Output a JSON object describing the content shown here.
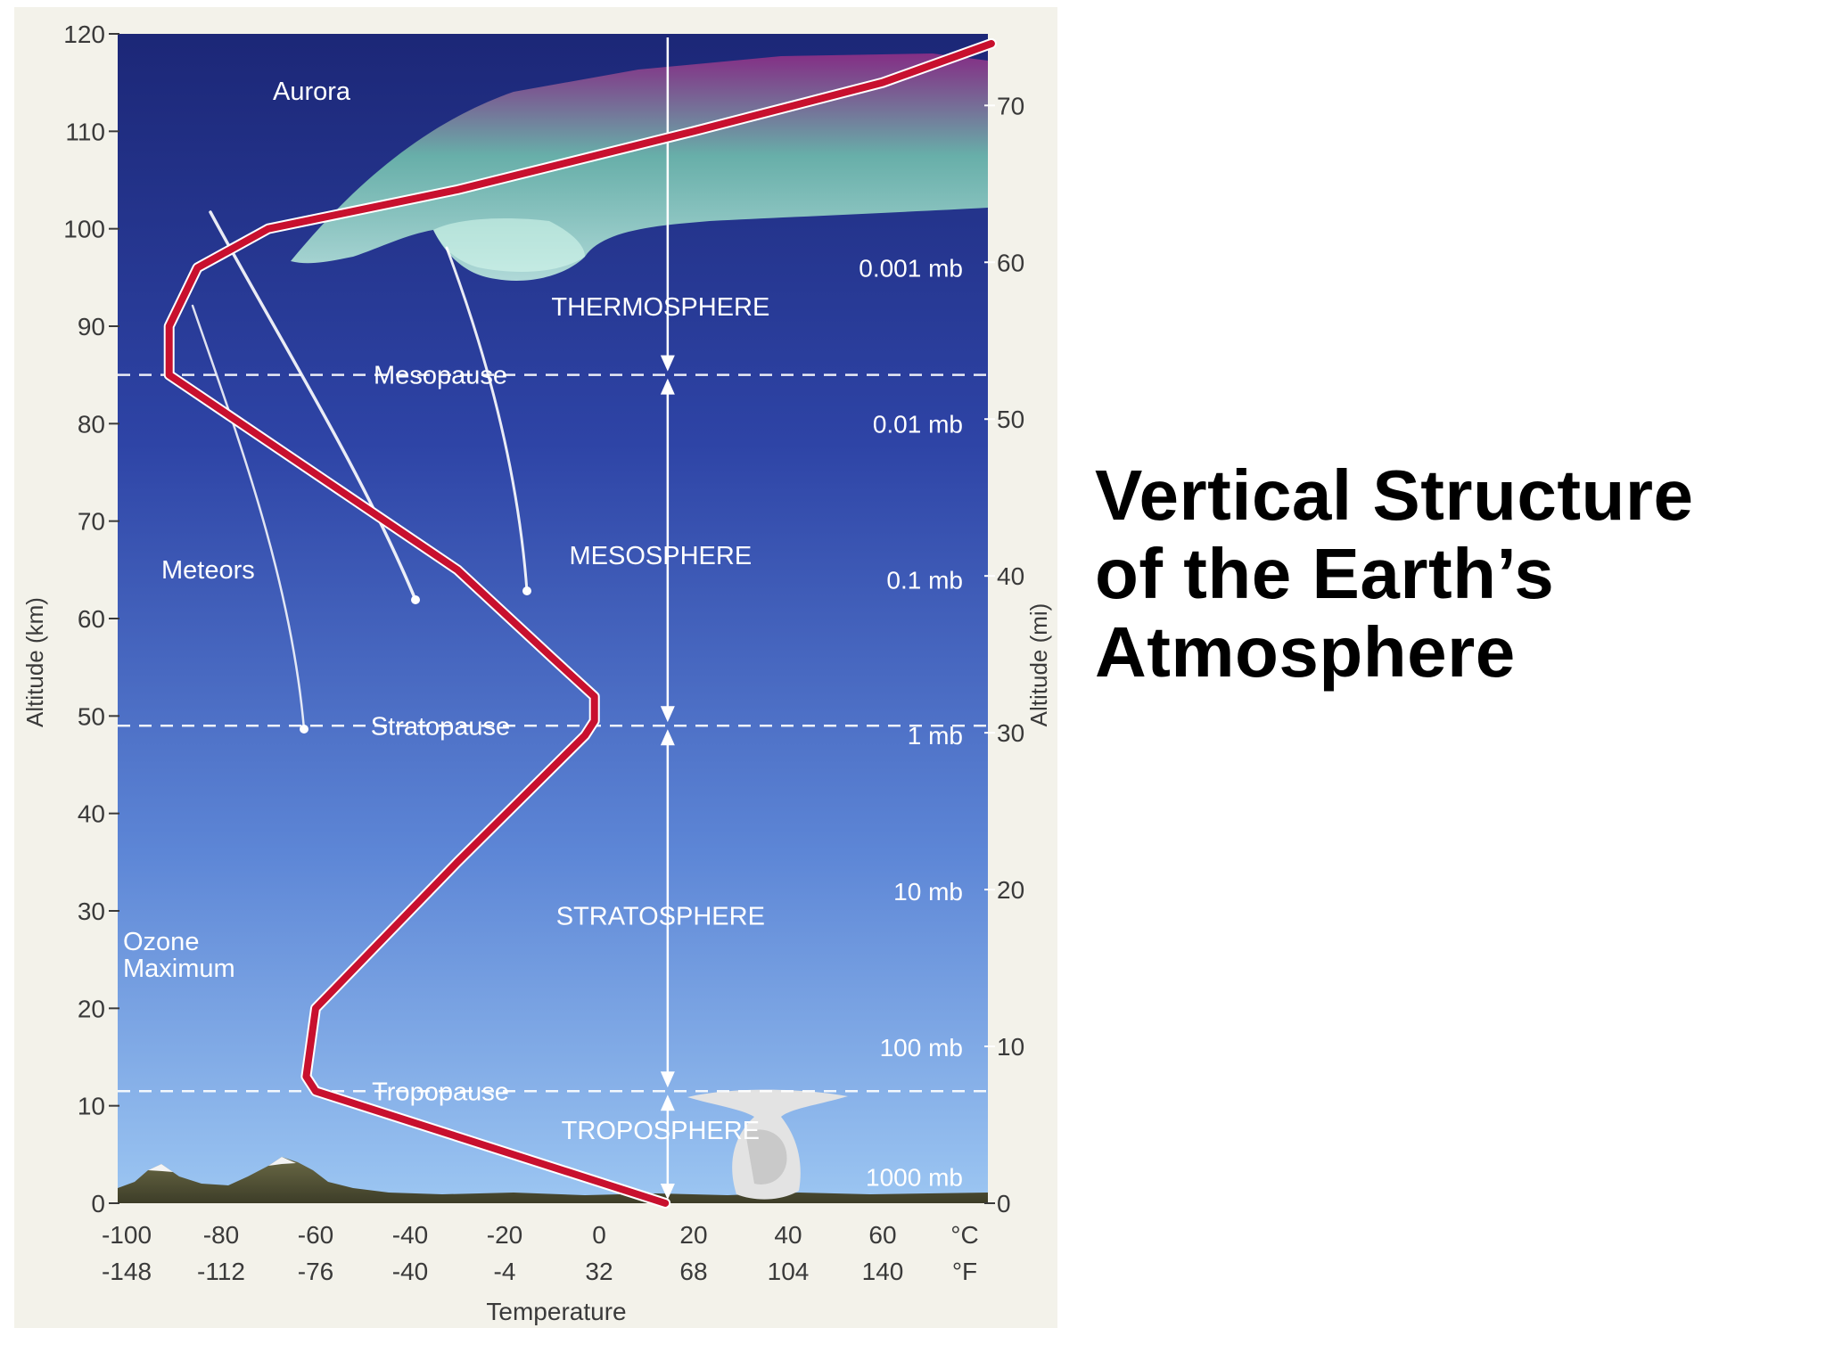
{
  "slide_title_lines": [
    "Vertical Structure",
    "of the Earth’s",
    "Atmosphere"
  ],
  "left_axis": {
    "label": "Altitude (km)",
    "ticks": [
      0,
      10,
      20,
      30,
      40,
      50,
      60,
      70,
      80,
      90,
      100,
      110,
      120
    ]
  },
  "right_axis": {
    "label": "Altitude (mi)",
    "ticks": [
      0,
      10,
      20,
      30,
      40,
      50,
      60,
      70
    ]
  },
  "temp_axis": {
    "label": "Temperature",
    "celsius": [
      "-100",
      "-80",
      "-60",
      "-40",
      "-20",
      "0",
      "20",
      "40",
      "60"
    ],
    "fahrenheit": [
      "-148",
      "-112",
      "-76",
      "-40",
      "-4",
      "32",
      "68",
      "104",
      "140"
    ],
    "unit_c": "°C",
    "unit_f": "°F"
  },
  "pressures": [
    {
      "label": "1000 mb",
      "alt_km": 2.7
    },
    {
      "label": "100 mb",
      "alt_km": 16
    },
    {
      "label": "10 mb",
      "alt_km": 32
    },
    {
      "label": "1 mb",
      "alt_km": 48
    },
    {
      "label": "0.1 mb",
      "alt_km": 64
    },
    {
      "label": "0.01 mb",
      "alt_km": 80
    },
    {
      "label": "0.001 mb",
      "alt_km": 96
    }
  ],
  "layers": [
    {
      "name": "TROPOSPHERE",
      "alt_km": 7.5
    },
    {
      "name": "STRATOSPHERE",
      "alt_km": 29.5
    },
    {
      "name": "MESOSPHERE",
      "alt_km": 66.5
    },
    {
      "name": "THERMOSPHERE",
      "alt_km": 92
    }
  ],
  "boundaries": [
    {
      "name": "Tropopause",
      "alt_km": 11.5
    },
    {
      "name": "Stratopause",
      "alt_km": 49
    },
    {
      "name": "Mesopause",
      "alt_km": 85
    }
  ],
  "annotations": {
    "aurora": "Aurora",
    "meteors": "Meteors",
    "ozone": [
      "Ozone",
      "Maximum"
    ]
  },
  "temperature_profile": {
    "x_unit": "°C",
    "y_unit": "km",
    "points": [
      [
        14,
        0
      ],
      [
        -60,
        11.5
      ],
      [
        -62,
        13
      ],
      [
        -60,
        20
      ],
      [
        -30,
        35
      ],
      [
        -3,
        48
      ],
      [
        -1,
        49.5
      ],
      [
        -1,
        52
      ],
      [
        -10,
        56
      ],
      [
        -30,
        65
      ],
      [
        -91,
        85
      ],
      [
        -91,
        90
      ],
      [
        -85,
        96
      ],
      [
        -70,
        100
      ],
      [
        -30,
        104
      ],
      [
        20,
        110
      ],
      [
        60,
        115
      ],
      [
        83,
        119
      ]
    ]
  },
  "colors": {
    "profile": "#c8102e",
    "sky_top": "#1b2a7a",
    "sky_bottom": "#8fbcf0",
    "text": "#ffffff",
    "axis_text": "#3a3a3a"
  }
}
